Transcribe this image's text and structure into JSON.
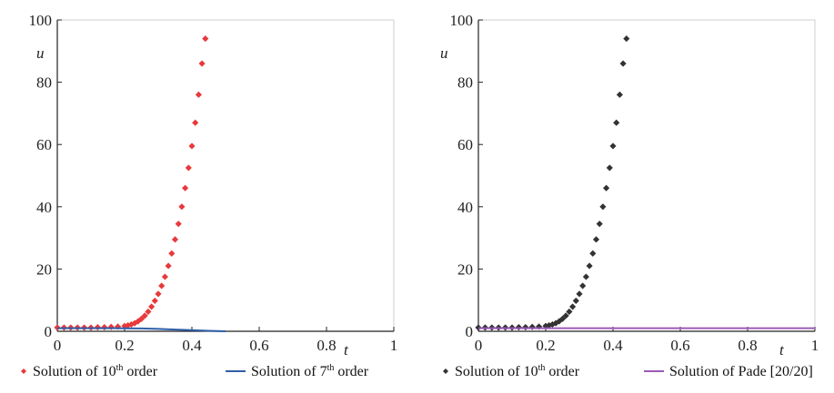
{
  "chart_data": [
    {
      "type": "scatter",
      "xlabel": "t",
      "ylabel": "u",
      "xlim": [
        0,
        1
      ],
      "ylim": [
        0,
        100
      ],
      "xticks": [
        "0",
        "0.2",
        "0.4",
        "0.6",
        "0.8",
        "1"
      ],
      "yticks": [
        "0",
        "20",
        "40",
        "60",
        "80",
        "100"
      ],
      "grid": false,
      "legend_placement": "bottom",
      "series": [
        {
          "name": "Solution of 10th order",
          "legend_prefix": "Solution of 10",
          "legend_sup": "th",
          "legend_suffix": " order",
          "kind": "points",
          "marker": "diamond",
          "color": "#e8393b",
          "x": [
            0,
            0.02,
            0.04,
            0.06,
            0.08,
            0.1,
            0.12,
            0.14,
            0.16,
            0.18,
            0.2,
            0.21,
            0.22,
            0.23,
            0.24,
            0.25,
            0.26,
            0.27,
            0.28,
            0.29,
            0.3,
            0.31,
            0.32,
            0.33,
            0.34,
            0.35,
            0.36,
            0.37,
            0.38,
            0.39,
            0.4,
            0.41,
            0.42,
            0.43,
            0.44
          ],
          "y": [
            1.2,
            1.2,
            1.2,
            1.2,
            1.2,
            1.2,
            1.3,
            1.3,
            1.4,
            1.5,
            1.7,
            1.9,
            2.2,
            2.6,
            3.2,
            4.0,
            5.0,
            6.3,
            7.9,
            9.8,
            12.0,
            14.6,
            17.5,
            21.0,
            25.0,
            29.5,
            34.5,
            40.0,
            46.0,
            52.5,
            59.5,
            67.0,
            76.0,
            86.0,
            94.0
          ]
        },
        {
          "name": "Solution of 7th order",
          "legend_prefix": "Solution of 7",
          "legend_sup": "th",
          "legend_suffix": " order",
          "kind": "line",
          "color": "#2e5ea8",
          "x": [
            0,
            0.05,
            0.1,
            0.15,
            0.2,
            0.25,
            0.3,
            0.35,
            0.4,
            0.45,
            0.5
          ],
          "y": [
            1.0,
            1.0,
            1.0,
            1.0,
            0.95,
            0.9,
            0.75,
            0.55,
            0.35,
            0.15,
            0.0
          ]
        }
      ]
    },
    {
      "type": "scatter",
      "xlabel": "t",
      "ylabel": "u",
      "xlim": [
        0,
        1
      ],
      "ylim": [
        0,
        100
      ],
      "xticks": [
        "0",
        "0.2",
        "0.4",
        "0.6",
        "0.8",
        "1"
      ],
      "yticks": [
        "0",
        "20",
        "40",
        "60",
        "80",
        "100"
      ],
      "grid": false,
      "legend_placement": "bottom",
      "series": [
        {
          "name": "Solution of 10th order",
          "legend_prefix": "Solution of 10",
          "legend_sup": "th",
          "legend_suffix": " order",
          "kind": "points",
          "marker": "diamond",
          "color": "#333333",
          "x": [
            0,
            0.02,
            0.04,
            0.06,
            0.08,
            0.1,
            0.12,
            0.14,
            0.16,
            0.18,
            0.2,
            0.21,
            0.22,
            0.23,
            0.24,
            0.25,
            0.26,
            0.27,
            0.28,
            0.29,
            0.3,
            0.31,
            0.32,
            0.33,
            0.34,
            0.35,
            0.36,
            0.37,
            0.38,
            0.39,
            0.4,
            0.41,
            0.42,
            0.43,
            0.44
          ],
          "y": [
            1.2,
            1.2,
            1.2,
            1.2,
            1.2,
            1.2,
            1.3,
            1.3,
            1.4,
            1.5,
            1.7,
            1.9,
            2.2,
            2.6,
            3.2,
            4.0,
            5.0,
            6.3,
            7.9,
            9.8,
            12.0,
            14.6,
            17.5,
            21.0,
            25.0,
            29.5,
            34.5,
            40.0,
            46.0,
            52.5,
            59.5,
            67.0,
            76.0,
            86.0,
            94.0
          ]
        },
        {
          "name": "Solution of Pade [20/20]",
          "legend_prefix": "Solution of Pade [20/20]",
          "legend_sup": "",
          "legend_suffix": "",
          "kind": "line",
          "color": "#9b59b6",
          "x": [
            0,
            0.1,
            0.2,
            0.3,
            0.4,
            0.5,
            0.6,
            0.7,
            0.8,
            0.9,
            1.0
          ],
          "y": [
            1.0,
            1.0,
            1.0,
            1.0,
            1.0,
            1.0,
            1.0,
            1.0,
            1.0,
            1.0,
            1.0
          ]
        }
      ]
    }
  ]
}
